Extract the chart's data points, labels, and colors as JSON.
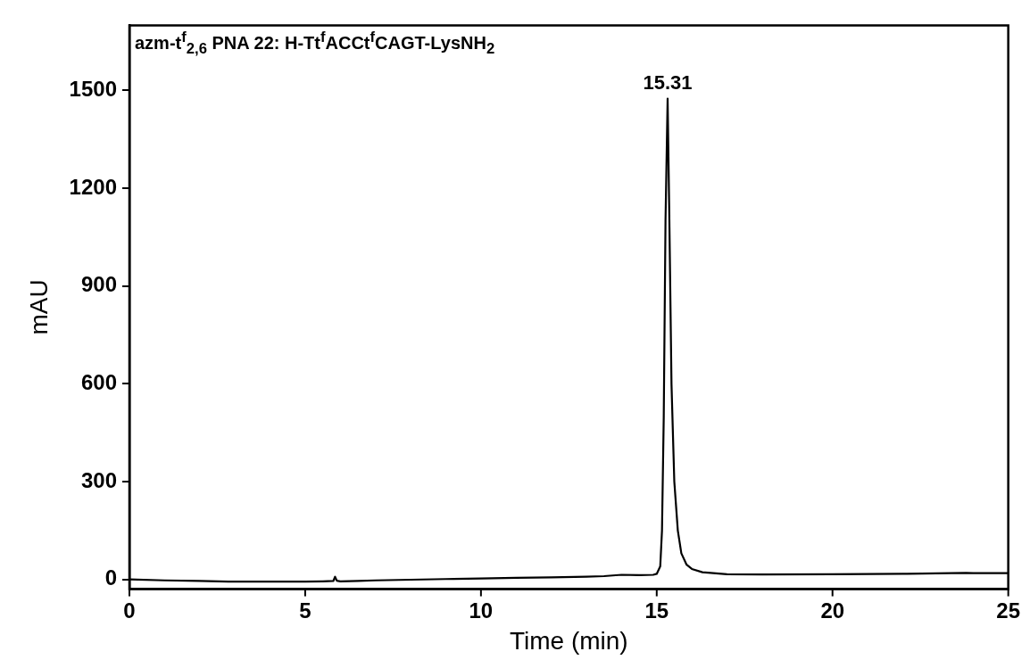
{
  "chart_data": {
    "type": "line",
    "title": "azm-t$^{f}$$_{2,6}$ PNA 22: H-Tt$^{f}$ACCt$^{f}$CAGT-LysNH$_{2}$",
    "xlabel": "Time (min)",
    "ylabel": "mAU",
    "x": [
      0,
      1,
      2,
      3,
      4,
      5,
      5.5,
      5.8,
      5.85,
      5.9,
      6.0,
      6.5,
      7,
      8,
      9,
      10,
      11,
      12,
      13,
      13.5,
      14,
      14.5,
      14.9,
      15.0,
      15.1,
      15.15,
      15.2,
      15.25,
      15.31,
      15.36,
      15.42,
      15.5,
      15.6,
      15.7,
      15.85,
      16.0,
      16.3,
      17,
      18,
      20,
      22,
      23.8,
      24,
      25
    ],
    "series": [
      {
        "color": "#000000",
        "values": [
          0,
          -3,
          -5,
          -7,
          -7,
          -7,
          -6,
          -5,
          8,
          -4,
          -6,
          -5,
          -3,
          -1,
          1,
          3,
          5,
          6,
          8,
          10,
          14,
          13,
          14,
          17,
          40,
          150,
          500,
          1100,
          1475,
          1100,
          600,
          300,
          150,
          80,
          45,
          32,
          22,
          16,
          15,
          16,
          17,
          20,
          19,
          19
        ]
      }
    ],
    "xlim": [
      0,
      25
    ],
    "ylim": [
      -30,
      1700
    ],
    "xticks": [
      0,
      5,
      10,
      15,
      20,
      25
    ],
    "yticks": [
      0,
      300,
      600,
      900,
      1200,
      1500
    ],
    "annotations": [
      {
        "text": "15.31",
        "x": 15.31,
        "y": 1475
      }
    ],
    "grid": false,
    "legend": false,
    "marker": "none",
    "line_style": "solid"
  }
}
